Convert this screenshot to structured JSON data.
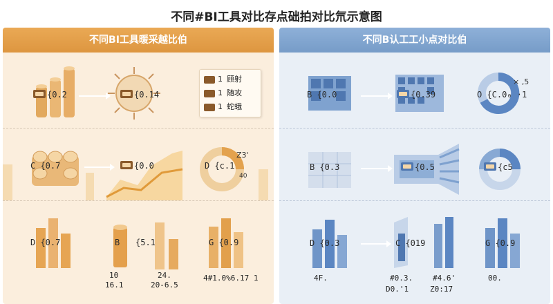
{
  "title": "不同#BI工具对比存点础拍对比氘示意图",
  "left": {
    "header": "不同BI工具暖采越比伯",
    "legend": [
      {
        "num": "1",
        "text": "顾射"
      },
      {
        "num": "1",
        "text": "随攻"
      },
      {
        "num": "1",
        "text": "蛇蛾"
      }
    ],
    "cells": [
      {
        "label": "{0.2"
      },
      {
        "label": "{0.14"
      },
      {
        "label": "C {0.7"
      },
      {
        "label": "{0.0"
      },
      {
        "label": "D {c.1"
      },
      {
        "label": "D {0.7"
      },
      {
        "label": "B"
      },
      {
        "label": "{5.1⁰"
      },
      {
        "label": "G {0.9"
      }
    ],
    "annotations": [
      "Z3'",
      "40"
    ],
    "bottom_labels": [
      {
        "line1": "10",
        "line2": "16.1"
      },
      {
        "line1": "24.",
        "line2": "20-6.5"
      },
      {
        "line1": "",
        "line2": "4#1.0%6.17 1"
      }
    ]
  },
  "right": {
    "header": "不同B认工工小点对比伯",
    "cells": [
      {
        "label": "B {0.0"
      },
      {
        "label": "{0.39"
      },
      {
        "label": "O {C.0₀ ·1"
      },
      {
        "label": "B {0.3"
      },
      {
        "label": "{0.5"
      },
      {
        "label": "{c5"
      },
      {
        "label": "D {0.3"
      },
      {
        "label": "C {019"
      },
      {
        "label": "G {0.9"
      }
    ],
    "annotations": [
      "× ,5"
    ],
    "bottom_labels": [
      "4F.",
      "#0.3.",
      "#4.6'",
      "D0.'1",
      "Z0:17",
      "00."
    ]
  },
  "colors": {
    "left_header": "#dd9640",
    "right_header": "#769cc8",
    "left_bg": "#fbeedd",
    "right_bg": "#e9eff6",
    "orange": "#e8a646",
    "blue": "#5b86c2"
  }
}
